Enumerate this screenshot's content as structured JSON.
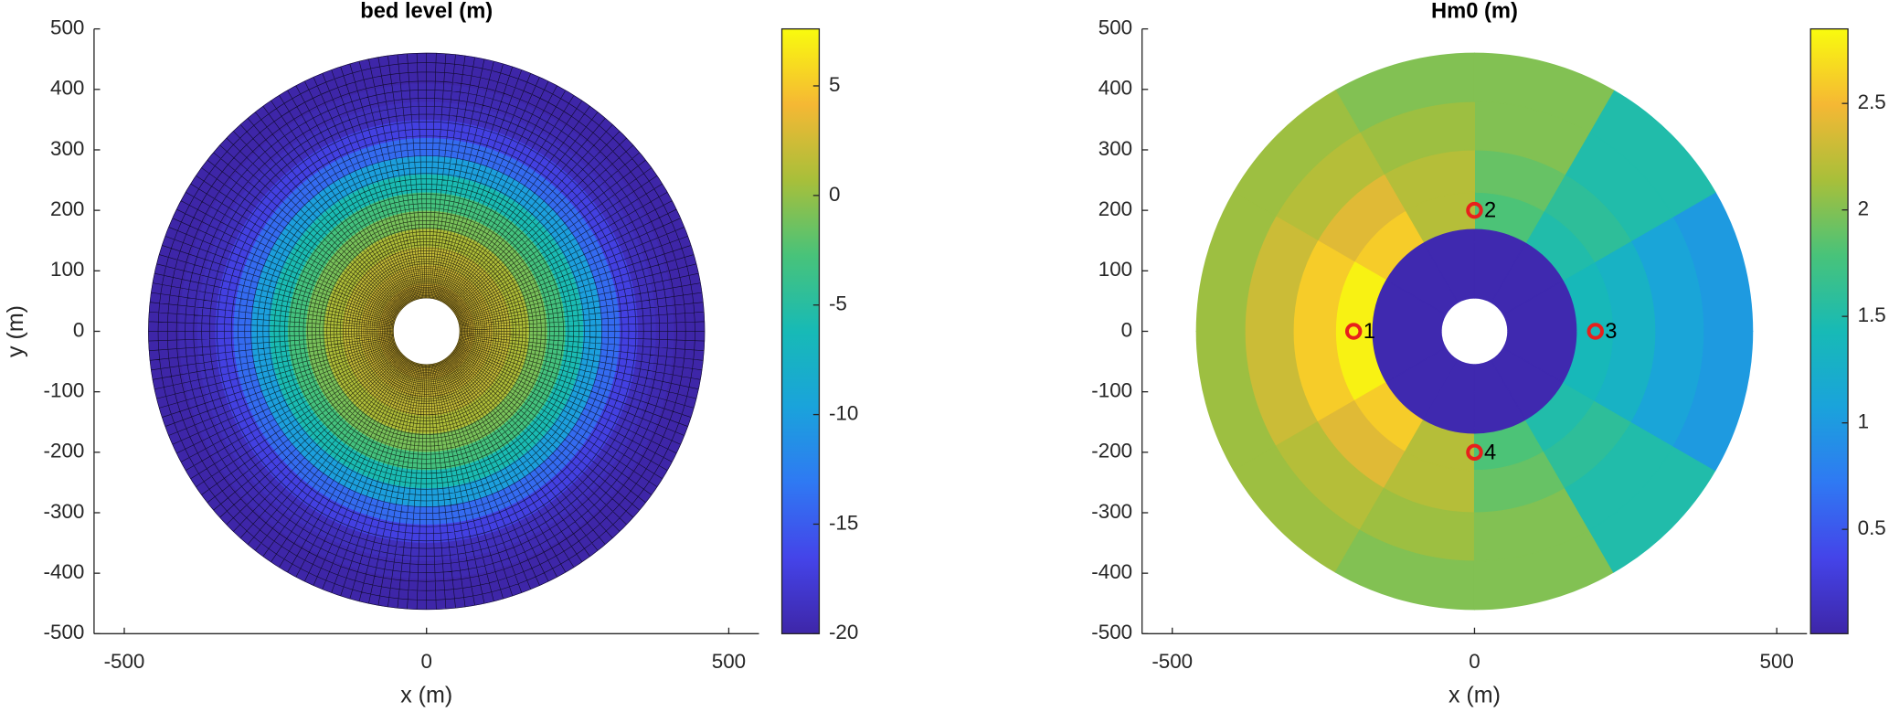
{
  "chart_data": [
    {
      "type": "polar-field",
      "title": "bed level (m)",
      "xlabel": "x (m)",
      "ylabel": "y (m)",
      "xlim": [
        -550,
        550
      ],
      "ylim": [
        -500,
        500
      ],
      "xticks": [
        -500,
        0,
        500
      ],
      "yticks": [
        -500,
        -400,
        -300,
        -200,
        -100,
        0,
        100,
        200,
        300,
        400,
        500
      ],
      "clim": [
        -20,
        7.6
      ],
      "cticks": [
        -20,
        -15,
        -10,
        -5,
        0,
        5
      ],
      "colormap": [
        "#3e26a8",
        "#4444e9",
        "#2f79f3",
        "#1aa3db",
        "#17bab6",
        "#48c37a",
        "#a8bf3a",
        "#f5b834",
        "#f9fb0e"
      ],
      "mesh": true,
      "r_edges": [
        55,
        80,
        110,
        140,
        170,
        200,
        230,
        260,
        290,
        320,
        350,
        380,
        410,
        440,
        460
      ],
      "values": [
        3,
        2.5,
        2,
        1,
        -1,
        -3,
        -6,
        -10,
        -14,
        -17,
        -19,
        -19.5,
        -20,
        -20
      ]
    },
    {
      "type": "polar-field",
      "title": "Hm0 (m)",
      "xlabel": "x (m)",
      "xlim": [
        -550,
        550
      ],
      "ylim": [
        -500,
        500
      ],
      "xticks": [
        -500,
        0,
        500
      ],
      "yticks": [
        -500,
        -400,
        -300,
        -200,
        -100,
        0,
        100,
        200,
        300,
        400,
        500
      ],
      "clim": [
        0.01,
        2.85
      ],
      "cticks": [
        0.5,
        1,
        1.5,
        2,
        2.5
      ],
      "colormap": [
        "#3e26a8",
        "#4444e9",
        "#2f79f3",
        "#1aa3db",
        "#17bab6",
        "#48c37a",
        "#a8bf3a",
        "#f5b834",
        "#f9fb0e"
      ],
      "mesh": false,
      "r_edges": [
        55,
        170,
        230,
        300,
        380,
        460
      ],
      "theta_edges": [
        0,
        30,
        60,
        90,
        120,
        150,
        180,
        210,
        240,
        270,
        300,
        330,
        360
      ],
      "values": [
        [
          0.05,
          0.05,
          0.05,
          0.05,
          0.05,
          0.05,
          0.05,
          0.05,
          0.05,
          0.05,
          0.05,
          0.05
        ],
        [
          1.4,
          1.5,
          1.8,
          2.2,
          2.6,
          2.8,
          2.8,
          2.6,
          2.2,
          1.8,
          1.5,
          1.4
        ],
        [
          1.3,
          1.6,
          1.9,
          2.2,
          2.4,
          2.6,
          2.6,
          2.4,
          2.2,
          1.9,
          1.6,
          1.3
        ],
        [
          1.1,
          1.5,
          2.0,
          2.1,
          2.2,
          2.3,
          2.3,
          2.2,
          2.1,
          2.0,
          1.5,
          1.1
        ],
        [
          1.0,
          1.5,
          2.0,
          2.0,
          2.1,
          2.1,
          2.1,
          2.1,
          2.0,
          2.0,
          1.5,
          1.0
        ]
      ],
      "points": {
        "x": [
          -200,
          0,
          200,
          0
        ],
        "y": [
          0,
          200,
          0,
          -200
        ],
        "labels": [
          "1",
          "2",
          "3",
          "4"
        ],
        "color": "#e8201c"
      }
    }
  ]
}
